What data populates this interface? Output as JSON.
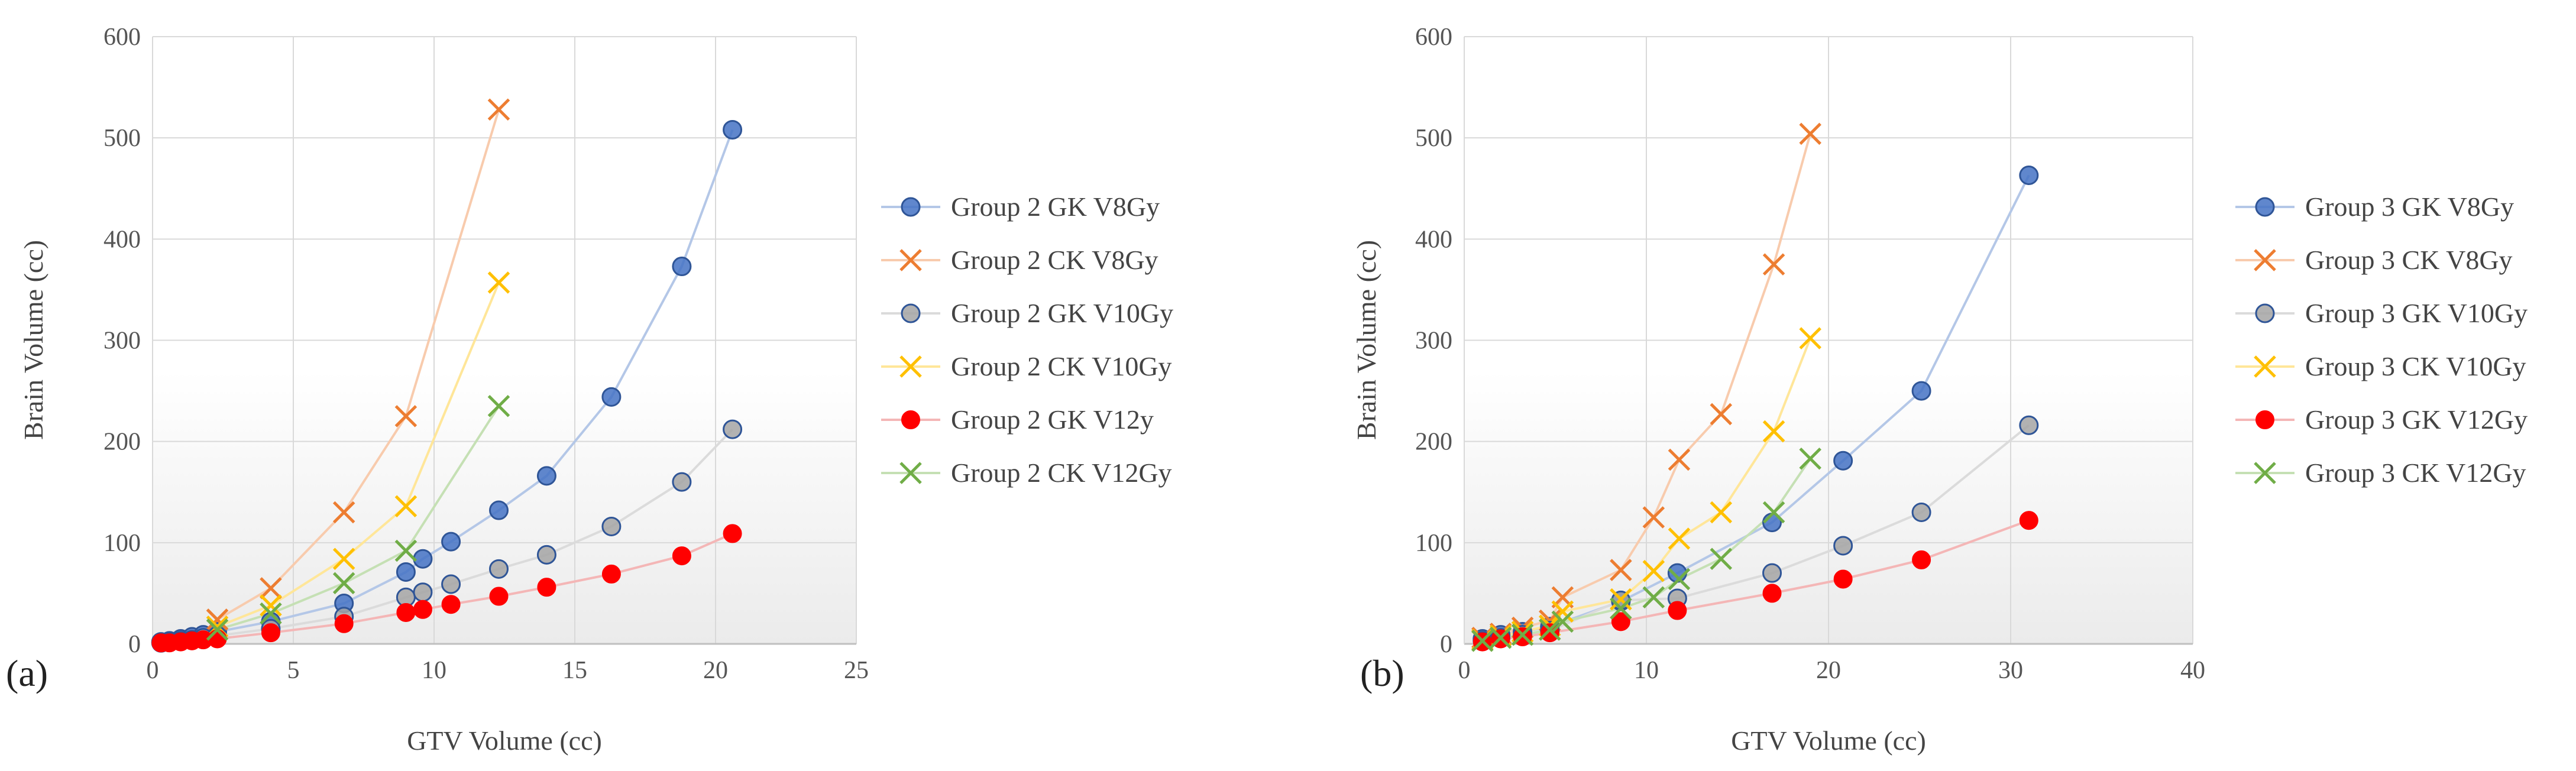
{
  "chart_data": [
    {
      "type": "scatter",
      "panel_label": "(a)",
      "xlabel": "GTV Volume (cc)",
      "ylabel": "Brain Volume (cc)",
      "xlim": [
        0,
        25
      ],
      "ylim": [
        0,
        600
      ],
      "xticks": [
        0,
        5,
        10,
        15,
        20,
        25
      ],
      "yticks": [
        0,
        100,
        200,
        300,
        400,
        500,
        600
      ],
      "legend_position": "right",
      "series": [
        {
          "name": "Group 2 GK V8Gy",
          "marker": "circle",
          "color": "#4472C4",
          "line_color": "#B4C7E7",
          "x": [
            0.3,
            0.6,
            1.0,
            1.4,
            1.8,
            2.3,
            4.2,
            6.8,
            9.0,
            9.6,
            10.6,
            12.3,
            14.0,
            16.3,
            18.8,
            20.6
          ],
          "y": [
            2,
            3,
            5,
            7,
            9,
            12,
            22,
            40,
            71,
            84,
            101,
            132,
            166,
            244,
            373,
            508
          ]
        },
        {
          "name": "Group 2 CK V8Gy",
          "marker": "x",
          "color": "#ED7D31",
          "line_color": "#F8CBAD",
          "x": [
            2.3,
            4.2,
            6.8,
            9.0,
            12.3
          ],
          "y": [
            24,
            55,
            130,
            225,
            528
          ]
        },
        {
          "name": "Group 2 GK V10Gy",
          "marker": "circle",
          "color": "#A5A5A5",
          "line_color": "#DBDBDB",
          "x": [
            0.3,
            0.6,
            1.0,
            1.4,
            1.8,
            2.3,
            4.2,
            6.8,
            9.0,
            9.6,
            10.6,
            12.3,
            14.0,
            16.3,
            18.8,
            20.6
          ],
          "y": [
            1,
            2,
            3,
            4,
            6,
            8,
            15,
            27,
            46,
            51,
            59,
            74,
            88,
            116,
            160,
            212
          ]
        },
        {
          "name": "Group 2 CK V10Gy",
          "marker": "x",
          "color": "#FFC000",
          "line_color": "#FFE699",
          "x": [
            2.3,
            4.2,
            6.8,
            9.0,
            12.3
          ],
          "y": [
            17,
            38,
            84,
            136,
            357
          ]
        },
        {
          "name": "Group 2 GK V12y",
          "marker": "dot",
          "color": "#FF0000",
          "line_color": "#F4B6B6",
          "x": [
            0.3,
            0.6,
            1.0,
            1.4,
            1.8,
            2.3,
            4.2,
            6.8,
            9.0,
            9.6,
            10.6,
            12.3,
            14.0,
            16.3,
            18.8,
            20.6
          ],
          "y": [
            1,
            1,
            2,
            3,
            4,
            5,
            11,
            20,
            31,
            34,
            39,
            47,
            56,
            69,
            87,
            109
          ]
        },
        {
          "name": "Group 2 CK V12Gy",
          "marker": "x",
          "color": "#70AD47",
          "line_color": "#C5E0B4",
          "x": [
            2.3,
            4.2,
            6.8,
            9.0,
            12.3
          ],
          "y": [
            14,
            30,
            60,
            92,
            235
          ]
        }
      ]
    },
    {
      "type": "scatter",
      "panel_label": "(b)",
      "xlabel": "GTV Volume (cc)",
      "ylabel": "Brain Volume (cc)",
      "xlim": [
        0,
        40
      ],
      "ylim": [
        0,
        600
      ],
      "xticks": [
        0,
        10,
        20,
        30,
        40
      ],
      "yticks": [
        0,
        100,
        200,
        300,
        400,
        500,
        600
      ],
      "legend_position": "right",
      "series": [
        {
          "name": "Group 3 GK V8Gy",
          "marker": "circle",
          "color": "#4472C4",
          "line_color": "#B4C7E7",
          "x": [
            1.0,
            2.0,
            3.2,
            4.7,
            8.6,
            11.7,
            16.9,
            20.8,
            25.1,
            31.0
          ],
          "y": [
            5,
            9,
            12,
            17,
            42,
            70,
            120,
            181,
            250,
            463
          ]
        },
        {
          "name": "Group 3 CK V8Gy",
          "marker": "x",
          "color": "#ED7D31",
          "line_color": "#F8CBAD",
          "x": [
            1.0,
            2.0,
            3.2,
            4.7,
            5.4,
            8.6,
            10.4,
            11.8,
            14.1,
            17.0,
            19.0
          ],
          "y": [
            6,
            10,
            16,
            23,
            46,
            73,
            125,
            182,
            227,
            375,
            504
          ]
        },
        {
          "name": "Group 3 GK V10Gy",
          "marker": "circle",
          "color": "#A5A5A5",
          "line_color": "#DBDBDB",
          "x": [
            1.0,
            2.0,
            3.2,
            4.7,
            8.6,
            11.7,
            16.9,
            20.8,
            25.1,
            31.0
          ],
          "y": [
            3,
            6,
            9,
            13,
            43,
            45,
            70,
            97,
            130,
            216
          ]
        },
        {
          "name": "Group 3 CK V10Gy",
          "marker": "x",
          "color": "#FFC000",
          "line_color": "#FFE699",
          "x": [
            1.0,
            2.0,
            3.2,
            4.7,
            5.4,
            8.6,
            10.4,
            11.8,
            14.1,
            17.0,
            19.0
          ],
          "y": [
            4,
            8,
            12,
            18,
            32,
            44,
            72,
            104,
            130,
            210,
            302
          ]
        },
        {
          "name": "Group 3 GK V12Gy",
          "marker": "dot",
          "color": "#FF0000",
          "line_color": "#F4B6B6",
          "x": [
            1.0,
            2.0,
            3.2,
            4.7,
            8.6,
            11.7,
            16.9,
            20.8,
            25.1,
            31.0
          ],
          "y": [
            2,
            5,
            7,
            11,
            22,
            33,
            50,
            64,
            83,
            122
          ]
        },
        {
          "name": "Group 3 CK V12Gy",
          "marker": "x",
          "color": "#70AD47",
          "line_color": "#C5E0B4",
          "x": [
            1.0,
            2.0,
            3.2,
            4.7,
            5.4,
            8.6,
            10.4,
            11.8,
            14.1,
            17.0,
            19.0
          ],
          "y": [
            3,
            6,
            9,
            14,
            22,
            35,
            46,
            64,
            84,
            130,
            183
          ]
        }
      ]
    }
  ]
}
